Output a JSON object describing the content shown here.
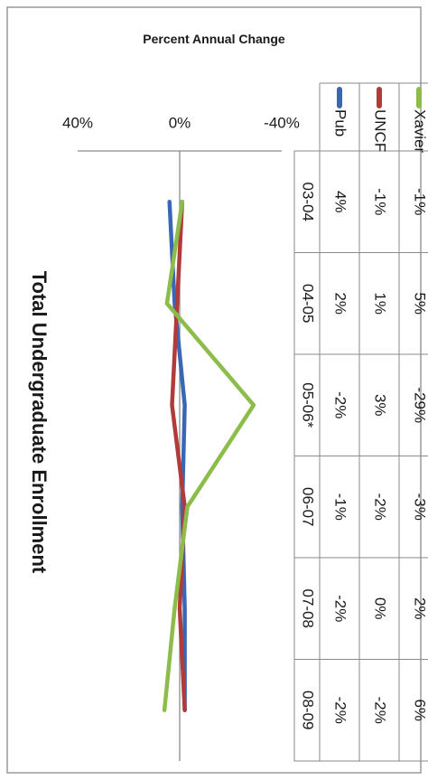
{
  "chart_data": {
    "type": "line",
    "title": "Total Undergraduate Enrollment",
    "ylabel": "Percent Annual Change",
    "xlabel": "",
    "categories": [
      "03-04",
      "04-05",
      "05-06*",
      "06-07",
      "07-08",
      "08-09"
    ],
    "ylim": [
      -40,
      40
    ],
    "yticks": [
      "40%",
      "0%",
      "-40%"
    ],
    "ytick_values": [
      40,
      0,
      -40
    ],
    "grid": false,
    "legend_placement": "in data table, left column",
    "series": [
      {
        "name": "Pub",
        "color": "#3a67b5",
        "values": [
          4,
          2,
          -2,
          -1,
          -2,
          -2
        ],
        "labels": [
          "4%",
          "2%",
          "-2%",
          "-1%",
          "-2%",
          "-2%"
        ]
      },
      {
        "name": "UNCF",
        "color": "#b13b3b",
        "values": [
          -1,
          1,
          3,
          -2,
          0,
          -2
        ],
        "labels": [
          "-1%",
          "1%",
          "3%",
          "-2%",
          "0%",
          "-2%"
        ]
      },
      {
        "name": "Xavier",
        "color": "#8cbd4a",
        "values": [
          -1,
          5,
          -29,
          -3,
          2,
          6
        ],
        "labels": [
          "-1%",
          "5%",
          "-29%",
          "-3%",
          "2%",
          "6%"
        ]
      }
    ]
  }
}
